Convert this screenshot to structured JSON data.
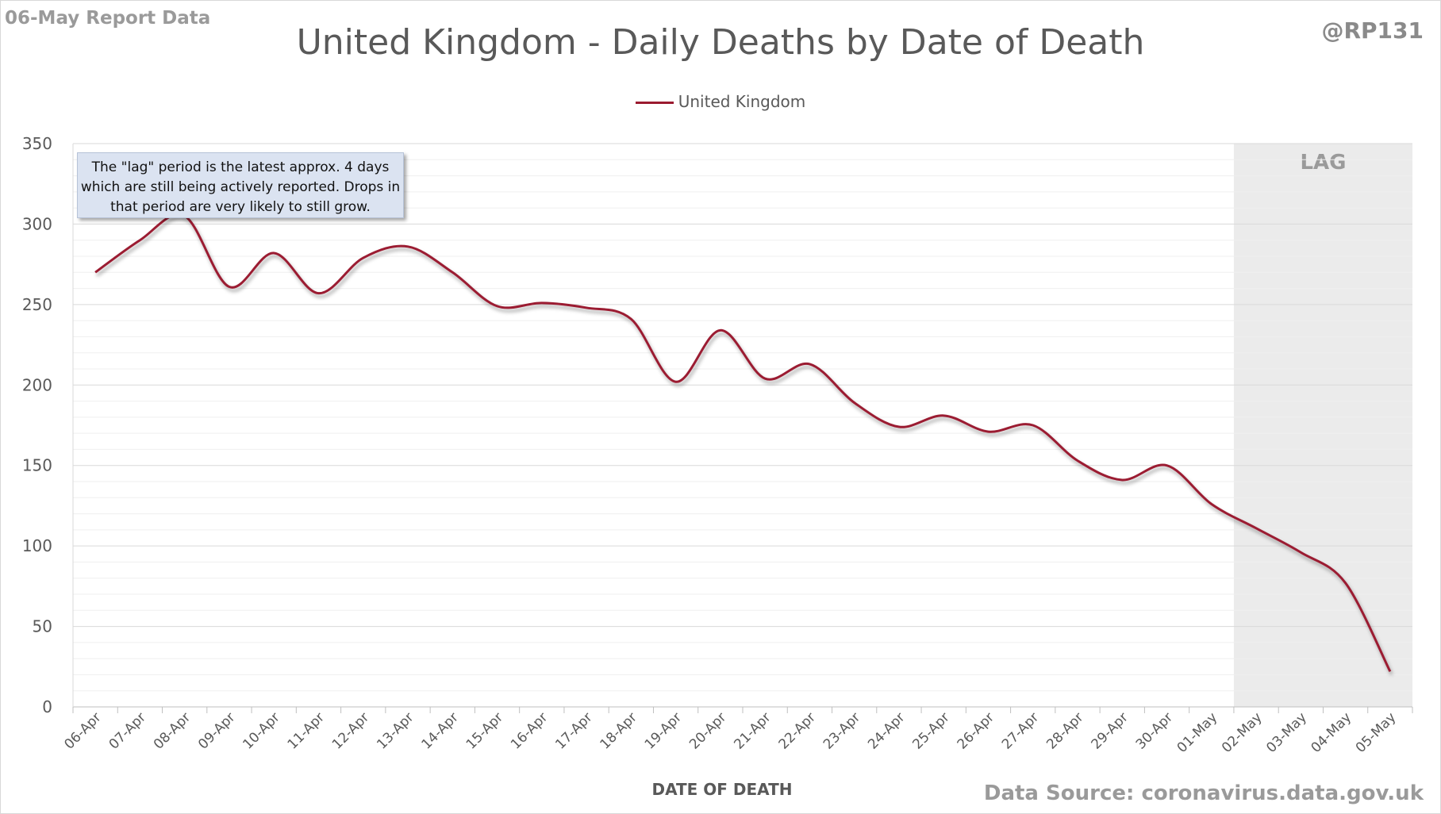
{
  "header": {
    "report_tag": "06-May Report Data",
    "author": "@RP131"
  },
  "footer": {
    "source": "Data Source: coronavirus.data.gov.uk"
  },
  "annotation": {
    "note": "The \"lag\" period is the latest approx. 4 days which are still being actively reported.  Drops in that period are very likely to still grow.",
    "lag_label": "LAG"
  },
  "colors": {
    "series": "#9b1b30",
    "lag_shade": "#ebebeb",
    "grid": "#d9d9d9",
    "note_bg": "#dbe3f1"
  },
  "chart_data": {
    "type": "line",
    "title": "United Kingdom - Daily Deaths by Date of Death",
    "xlabel": "DATE OF DEATH",
    "ylabel": "",
    "ylim": [
      0,
      350
    ],
    "yticks": [
      0,
      50,
      100,
      150,
      200,
      250,
      300,
      350
    ],
    "grid": true,
    "legend": "top-center",
    "categories": [
      "06-Apr",
      "07-Apr",
      "08-Apr",
      "09-Apr",
      "10-Apr",
      "11-Apr",
      "12-Apr",
      "13-Apr",
      "14-Apr",
      "15-Apr",
      "16-Apr",
      "17-Apr",
      "18-Apr",
      "19-Apr",
      "20-Apr",
      "21-Apr",
      "22-Apr",
      "23-Apr",
      "24-Apr",
      "25-Apr",
      "26-Apr",
      "27-Apr",
      "28-Apr",
      "29-Apr",
      "30-Apr",
      "01-May",
      "02-May",
      "03-May",
      "04-May",
      "05-May"
    ],
    "lag_start": "02-May",
    "series": [
      {
        "name": "United Kingdom",
        "values": [
          270,
          290,
          305,
          261,
          282,
          257,
          279,
          286,
          270,
          249,
          251,
          248,
          241,
          202,
          234,
          204,
          213,
          189,
          174,
          181,
          171,
          175,
          153,
          141,
          150,
          126,
          111,
          96,
          77,
          22
        ]
      }
    ]
  }
}
